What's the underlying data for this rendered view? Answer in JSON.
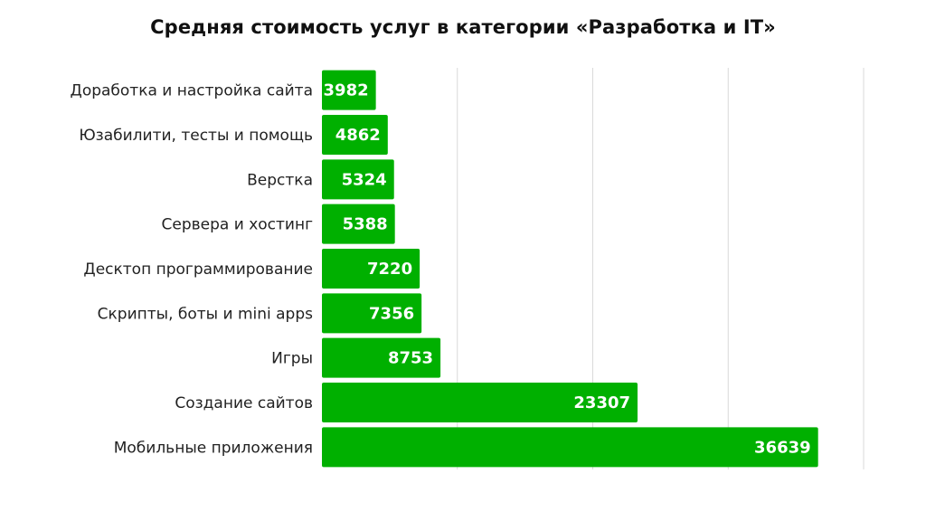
{
  "chart_data": {
    "type": "bar",
    "orientation": "horizontal",
    "title": "Средняя стоимость услуг в категории «Разработка и IT»",
    "xlabel": "",
    "ylabel": "",
    "xlim": [
      0,
      40000
    ],
    "grid": true,
    "categories": [
      "Доработка и настройка сайта",
      "Юзабилити, тесты и помощь",
      "Верстка",
      "Сервера и хостинг",
      "Десктоп программирование",
      "Скрипты, боты и mini apps",
      "Игры",
      "Создание сайтов",
      "Мобильные приложения"
    ],
    "values": [
      3982,
      4862,
      5324,
      5388,
      7220,
      7356,
      8753,
      23307,
      36639
    ],
    "bar_color": "#00b000",
    "grid_color": "#d9d9d9"
  }
}
